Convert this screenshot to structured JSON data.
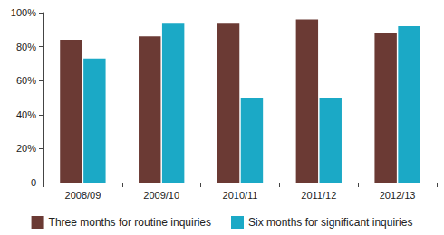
{
  "chart_data": {
    "type": "bar",
    "categories": [
      "2008/09",
      "2009/10",
      "2010/11",
      "2011/12",
      "2012/13"
    ],
    "series": [
      {
        "name": "Three months for routine inquiries",
        "color": "#6b3a34",
        "values": [
          84,
          86,
          94,
          96,
          88
        ]
      },
      {
        "name": "Six months for significant inquiries",
        "color": "#1ba9c6",
        "values": [
          73,
          94,
          50,
          50,
          92
        ]
      }
    ],
    "ylim": [
      0,
      100
    ],
    "yticks": [
      0,
      {
        "value": 20,
        "label": "20%"
      },
      {
        "value": 40,
        "label": "40%"
      },
      {
        "value": 60,
        "label": "60%"
      },
      {
        "value": 80,
        "label": "80%"
      },
      {
        "value": 100,
        "label": "100%"
      }
    ],
    "grid": false,
    "legend": "bottom"
  }
}
